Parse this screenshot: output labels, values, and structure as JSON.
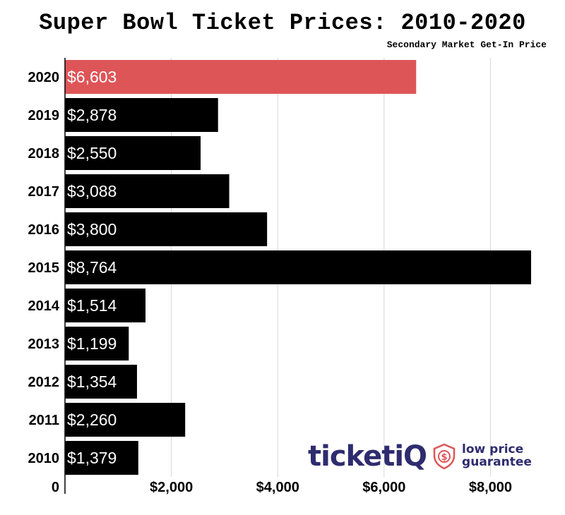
{
  "chart_data": {
    "type": "bar",
    "orientation": "horizontal",
    "title": "Super Bowl Ticket Prices: 2010-2020",
    "subtitle": "Secondary Market Get-In Price",
    "categories": [
      "2020",
      "2019",
      "2018",
      "2017",
      "2016",
      "2015",
      "2014",
      "2013",
      "2012",
      "2011",
      "2010"
    ],
    "values": [
      6603,
      2878,
      2550,
      3088,
      3800,
      8764,
      1514,
      1199,
      1354,
      2260,
      1379
    ],
    "value_labels": [
      "$6,603",
      "$2,878",
      "$2,550",
      "$3,088",
      "$3,800",
      "$8,764",
      "$1,514",
      "$1,199",
      "$1,354",
      "$2,260",
      "$1,379"
    ],
    "highlight_category": "2020",
    "colors": {
      "default_bar": "#000000",
      "highlight_bar": "#de5558",
      "label_text": "#ffffff",
      "grid": "#d9d9d9"
    },
    "xlim": [
      0,
      9000
    ],
    "xticks": [
      0,
      2000,
      4000,
      6000,
      8000
    ],
    "xtick_labels": [
      "0",
      "$2,000",
      "$4,000",
      "$6,000",
      "$8,000"
    ],
    "grid": true
  },
  "logo": {
    "word_main": "ticket",
    "word_accent": "iQ",
    "icon": "dollar-shield-icon",
    "tagline_line1": "low price",
    "tagline_line2": "guarantee"
  }
}
